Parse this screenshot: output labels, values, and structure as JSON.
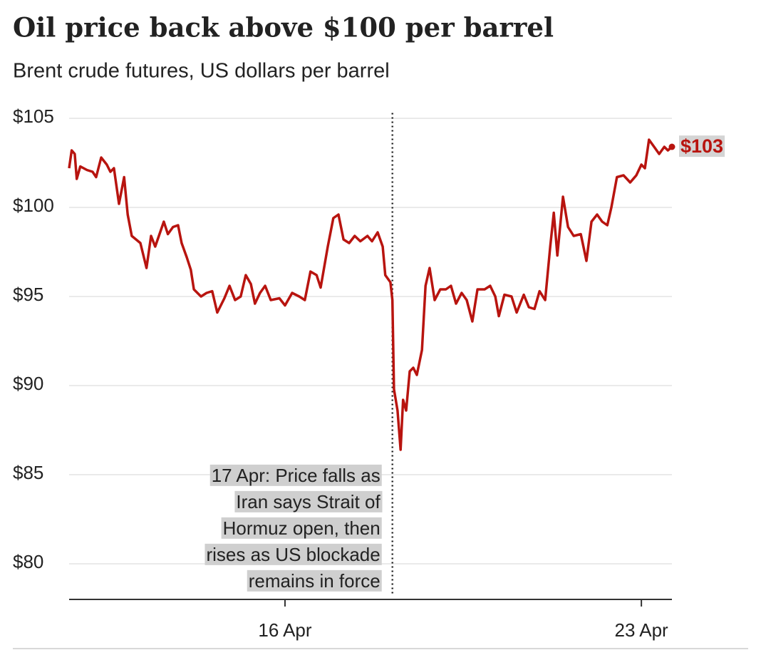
{
  "chart_data": {
    "type": "line",
    "title": "Oil price back above $100 per barrel",
    "subtitle": "Brent crude futures, US dollars per barrel",
    "x": [
      11.76,
      11.81,
      11.87,
      11.91,
      11.98,
      12.11,
      12.22,
      12.29,
      12.39,
      12.5,
      12.57,
      12.64,
      12.74,
      12.84,
      12.91,
      12.99,
      13.16,
      13.28,
      13.37,
      13.45,
      13.62,
      13.7,
      13.8,
      13.9,
      13.97,
      14.07,
      14.15,
      14.21,
      14.35,
      14.46,
      14.57,
      14.67,
      14.81,
      14.91,
      15.02,
      15.13,
      15.23,
      15.33,
      15.41,
      15.51,
      15.61,
      15.72,
      15.89,
      16,
      16.14,
      16.28,
      16.39,
      16.5,
      16.62,
      16.7,
      16.84,
      16.95,
      17.05,
      17.15,
      17.26,
      17.37,
      17.48,
      17.62,
      17.71,
      17.82,
      17.92,
      17.97,
      18.07,
      18.11,
      18.14,
      18.21,
      18.27,
      18.32,
      18.38,
      18.45,
      18.52,
      18.59,
      18.69,
      18.76,
      18.84,
      18.94,
      19.05,
      19.16,
      19.26,
      19.36,
      19.47,
      19.57,
      19.68,
      19.78,
      19.92,
      20.03,
      20.13,
      20.2,
      20.31,
      20.45,
      20.55,
      20.69,
      20.79,
      20.9,
      21.0,
      21.11,
      21.21,
      21.28,
      21.35,
      21.46,
      21.56,
      21.67,
      21.81,
      21.92,
      22.02,
      22.13,
      22.23,
      22.33,
      22.41,
      22.52,
      22.65,
      22.78,
      22.9,
      23,
      23.07,
      23.15,
      23.25,
      23.35,
      23.45,
      23.52,
      23.6
    ],
    "series": [
      {
        "name": "Brent crude",
        "color": "#b8140f",
        "values": [
          102.2,
          103.2,
          103.0,
          101.6,
          102.3,
          102.1,
          102.0,
          101.7,
          102.8,
          102.4,
          102.0,
          102.2,
          100.2,
          101.7,
          99.6,
          98.4,
          98.0,
          96.6,
          98.4,
          97.8,
          99.2,
          98.5,
          98.9,
          99.0,
          98.0,
          97.2,
          96.5,
          95.4,
          95.0,
          95.2,
          95.3,
          94.1,
          94.9,
          95.6,
          94.8,
          95.0,
          96.2,
          95.7,
          94.6,
          95.2,
          95.6,
          94.8,
          94.9,
          94.5,
          95.2,
          95.0,
          94.8,
          96.4,
          96.2,
          95.5,
          97.8,
          99.4,
          99.6,
          98.2,
          98.0,
          98.4,
          98.1,
          98.4,
          98.1,
          98.6,
          97.8,
          96.2,
          95.8,
          94.8,
          89.8,
          88.6,
          86.4,
          89.2,
          88.6,
          90.8,
          91.0,
          90.6,
          92.0,
          95.6,
          96.6,
          94.8,
          95.4,
          95.4,
          95.6,
          94.6,
          95.2,
          94.8,
          93.6,
          95.4,
          95.4,
          95.6,
          95.0,
          93.9,
          95.1,
          95.0,
          94.1,
          95.1,
          94.4,
          94.3,
          95.3,
          94.8,
          97.8,
          99.7,
          97.3,
          100.6,
          98.9,
          98.4,
          98.5,
          97.0,
          99.2,
          99.6,
          99.2,
          99.0,
          100.0,
          101.7,
          101.8,
          101.4,
          101.8,
          102.4,
          102.2,
          103.8,
          103.4,
          103.0,
          103.4,
          103.2,
          103.4
        ]
      }
    ],
    "end_label": "$103",
    "xlim": [
      11.76,
      23.6
    ],
    "ylim": [
      78,
      105.3
    ],
    "xticks": [
      {
        "value": 16,
        "label": "16 Apr"
      },
      {
        "value": 23,
        "label": "23 Apr"
      }
    ],
    "yticks": [
      {
        "value": 80,
        "label": "$80"
      },
      {
        "value": 85,
        "label": "$85"
      },
      {
        "value": 90,
        "label": "$90"
      },
      {
        "value": 95,
        "label": "$95"
      },
      {
        "value": 100,
        "label": "$100"
      },
      {
        "value": 105,
        "label": "$105"
      }
    ],
    "grid": true,
    "annotation": {
      "x": 18.11,
      "lines": [
        "17 Apr: Price falls as",
        "Iran says Strait of",
        "Hormuz open, then",
        "rises as US blockade",
        "remains in force"
      ]
    }
  }
}
